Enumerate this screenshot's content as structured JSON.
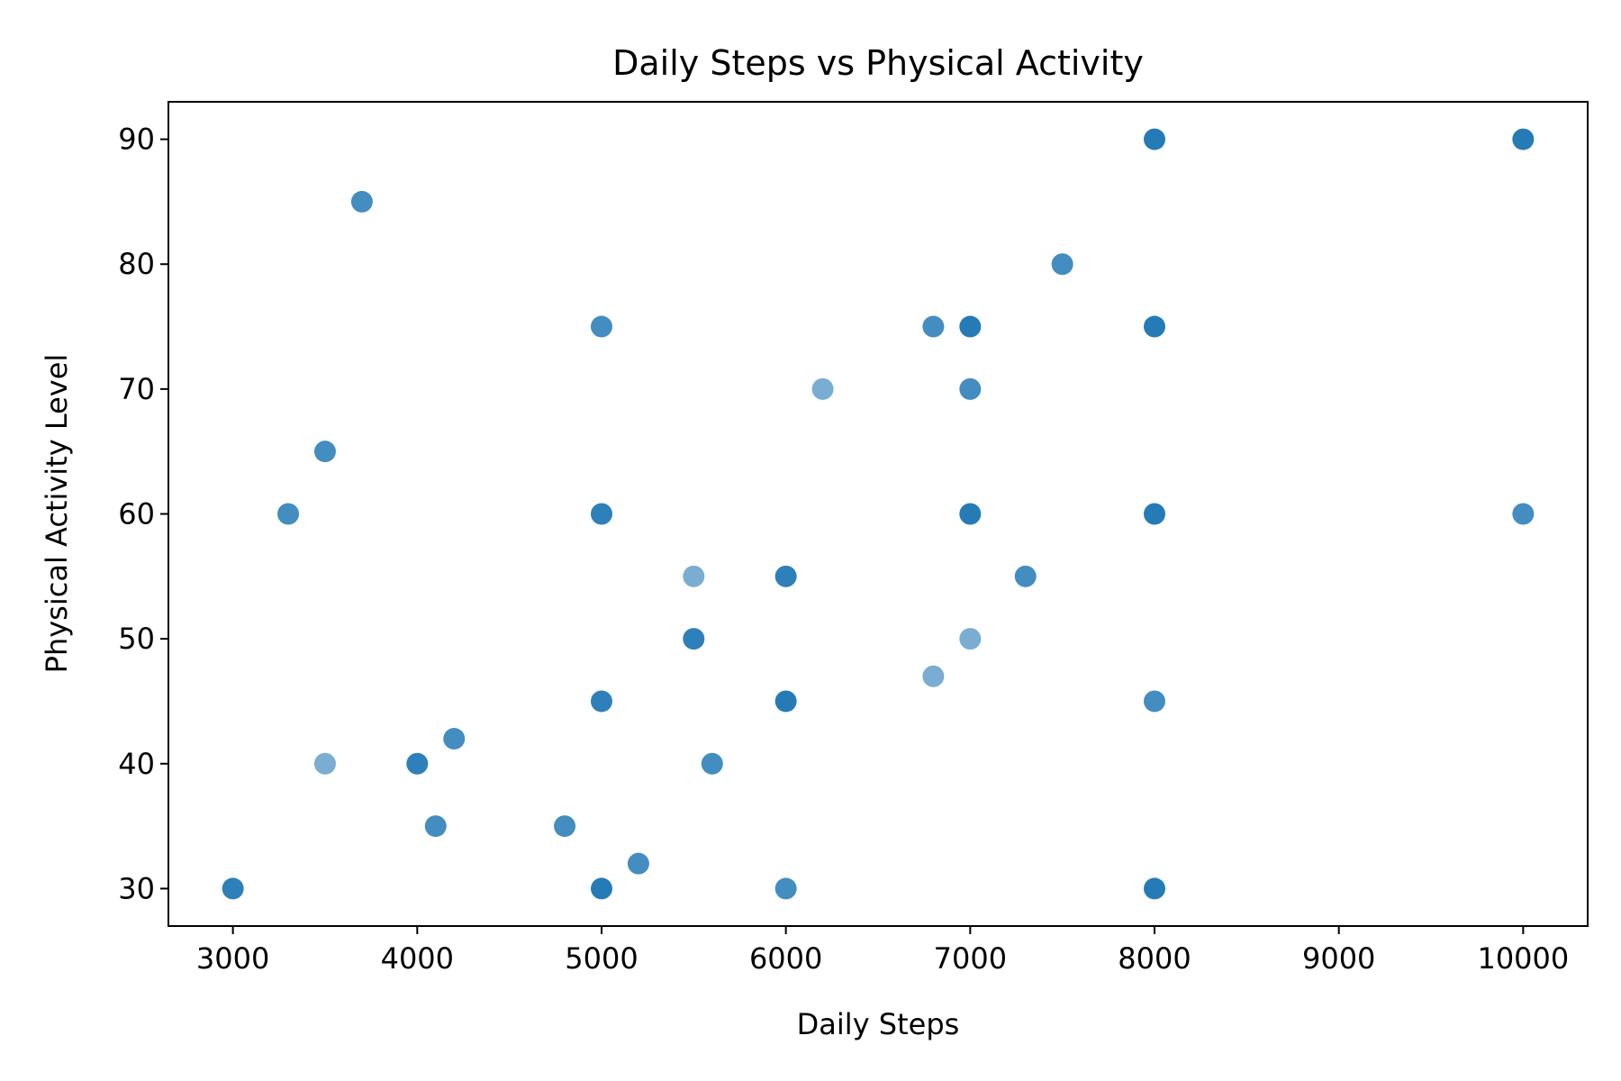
{
  "chart_data": {
    "type": "scatter",
    "title": "Daily Steps vs Physical Activity",
    "xlabel": "Daily Steps",
    "ylabel": "Physical Activity Level",
    "xlim": [
      2650,
      10350
    ],
    "ylim": [
      27,
      93
    ],
    "xticks": [
      3000,
      4000,
      5000,
      6000,
      7000,
      8000,
      9000,
      10000
    ],
    "yticks": [
      30,
      40,
      50,
      60,
      70,
      80,
      90
    ],
    "grid": false,
    "marker_color": "#1f77b4",
    "points": [
      {
        "x": 3000,
        "y": 30,
        "count": 3
      },
      {
        "x": 3300,
        "y": 60,
        "count": 2
      },
      {
        "x": 3500,
        "y": 65,
        "count": 2
      },
      {
        "x": 3500,
        "y": 40,
        "count": 1
      },
      {
        "x": 3700,
        "y": 85,
        "count": 2
      },
      {
        "x": 4000,
        "y": 40,
        "count": 3
      },
      {
        "x": 4100,
        "y": 35,
        "count": 2
      },
      {
        "x": 4200,
        "y": 42,
        "count": 2
      },
      {
        "x": 4800,
        "y": 35,
        "count": 2
      },
      {
        "x": 5000,
        "y": 75,
        "count": 2
      },
      {
        "x": 5000,
        "y": 60,
        "count": 3
      },
      {
        "x": 5000,
        "y": 45,
        "count": 3
      },
      {
        "x": 5000,
        "y": 30,
        "count": 4
      },
      {
        "x": 5200,
        "y": 32,
        "count": 2
      },
      {
        "x": 5500,
        "y": 55,
        "count": 1
      },
      {
        "x": 5500,
        "y": 50,
        "count": 3
      },
      {
        "x": 5600,
        "y": 40,
        "count": 2
      },
      {
        "x": 6000,
        "y": 55,
        "count": 3
      },
      {
        "x": 6000,
        "y": 45,
        "count": 4
      },
      {
        "x": 6000,
        "y": 30,
        "count": 2
      },
      {
        "x": 6200,
        "y": 70,
        "count": 1
      },
      {
        "x": 6800,
        "y": 75,
        "count": 2
      },
      {
        "x": 6800,
        "y": 47,
        "count": 1
      },
      {
        "x": 7000,
        "y": 75,
        "count": 4
      },
      {
        "x": 7000,
        "y": 70,
        "count": 2
      },
      {
        "x": 7000,
        "y": 60,
        "count": 4
      },
      {
        "x": 7000,
        "y": 50,
        "count": 1
      },
      {
        "x": 7300,
        "y": 55,
        "count": 2
      },
      {
        "x": 7500,
        "y": 80,
        "count": 2
      },
      {
        "x": 8000,
        "y": 90,
        "count": 4
      },
      {
        "x": 8000,
        "y": 75,
        "count": 4
      },
      {
        "x": 8000,
        "y": 60,
        "count": 4
      },
      {
        "x": 8000,
        "y": 45,
        "count": 2
      },
      {
        "x": 8000,
        "y": 30,
        "count": 4
      },
      {
        "x": 10000,
        "y": 90,
        "count": 4
      },
      {
        "x": 10000,
        "y": 60,
        "count": 2
      }
    ]
  }
}
